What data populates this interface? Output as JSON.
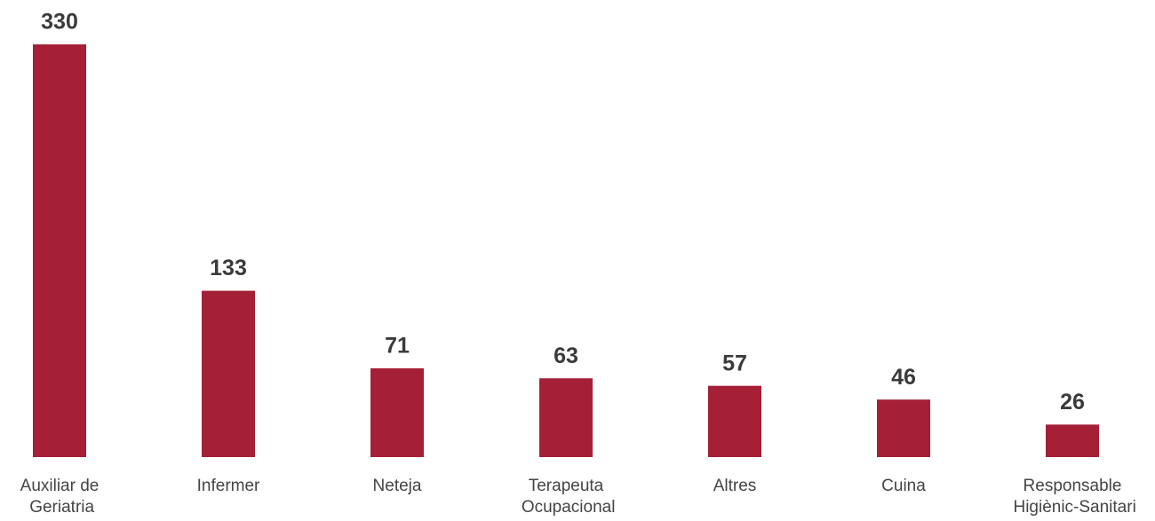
{
  "chart_data": {
    "type": "bar",
    "categories": [
      "Auxiliar de Geriatria",
      "Infermer",
      "Neteja",
      "Terapeuta Ocupacional",
      "Altres",
      "Cuina",
      "Responsable Higiènic-Sanitari"
    ],
    "values": [
      330,
      133,
      71,
      63,
      57,
      46,
      26
    ],
    "color": "#a51f37"
  }
}
